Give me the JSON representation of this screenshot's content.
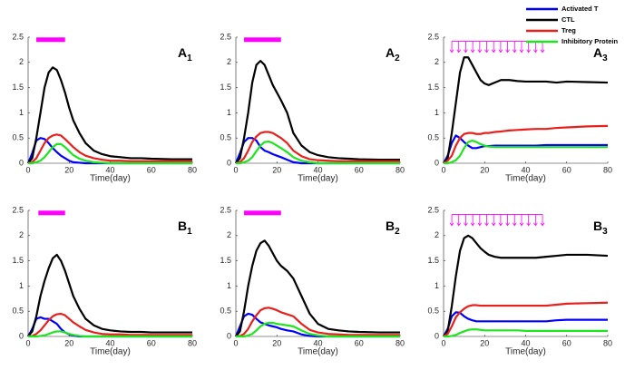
{
  "chart_data": [
    {
      "type": "line",
      "label": "A",
      "label_sub": "1",
      "xlabel": "Time(day)",
      "x": [
        0,
        2,
        4,
        6,
        8,
        10,
        12,
        14,
        16,
        18,
        20,
        22,
        25,
        28,
        32,
        36,
        40,
        45,
        50,
        55,
        60,
        70,
        80
      ],
      "xlim": [
        0,
        80
      ],
      "xticks": [
        0,
        20,
        40,
        60,
        80
      ],
      "ylim": [
        0,
        2.5
      ],
      "yticks": [
        0,
        0.5,
        1,
        1.5,
        2,
        2.5
      ],
      "treatment": {
        "start": 4,
        "end": 18,
        "y": 2.45,
        "color": "#ff00ff"
      },
      "series": [
        {
          "color": "#0000ff",
          "values": [
            0,
            0.2,
            0.45,
            0.5,
            0.48,
            0.4,
            0.3,
            0.22,
            0.15,
            0.1,
            0.05,
            0.02,
            0.01,
            0,
            0,
            0,
            0,
            0,
            0,
            0,
            0,
            0,
            0
          ]
        },
        {
          "color": "#000000",
          "values": [
            0,
            0.1,
            0.5,
            1.0,
            1.5,
            1.8,
            1.9,
            1.85,
            1.65,
            1.4,
            1.1,
            0.85,
            0.6,
            0.4,
            0.25,
            0.18,
            0.14,
            0.12,
            0.1,
            0.1,
            0.09,
            0.08,
            0.08
          ]
        },
        {
          "color": "#e8201c",
          "values": [
            0,
            0.02,
            0.1,
            0.25,
            0.4,
            0.5,
            0.55,
            0.57,
            0.55,
            0.48,
            0.4,
            0.32,
            0.22,
            0.15,
            0.1,
            0.07,
            0.05,
            0.05,
            0.04,
            0.04,
            0.04,
            0.04,
            0.04
          ]
        },
        {
          "color": "#1ee61e",
          "values": [
            0,
            0,
            0.02,
            0.05,
            0.12,
            0.22,
            0.32,
            0.38,
            0.38,
            0.32,
            0.24,
            0.16,
            0.09,
            0.05,
            0.02,
            0.01,
            0,
            0,
            0,
            0,
            0,
            0,
            0
          ]
        }
      ]
    },
    {
      "type": "line",
      "label": "A",
      "label_sub": "2",
      "xlabel": "Time(day)",
      "x": [
        0,
        2,
        4,
        6,
        8,
        10,
        12,
        14,
        16,
        18,
        20,
        22,
        25,
        28,
        32,
        36,
        40,
        45,
        50,
        55,
        60,
        70,
        80
      ],
      "xlim": [
        0,
        80
      ],
      "xticks": [
        0,
        20,
        40,
        60,
        80
      ],
      "ylim": [
        0,
        2.5
      ],
      "yticks": [
        0,
        0.5,
        1,
        1.5,
        2,
        2.5
      ],
      "treatment": {
        "start": 4,
        "end": 22,
        "y": 2.45,
        "color": "#ff00ff"
      },
      "series": [
        {
          "color": "#0000ff",
          "values": [
            0,
            0.2,
            0.42,
            0.5,
            0.5,
            0.45,
            0.32,
            0.25,
            0.22,
            0.18,
            0.15,
            0.12,
            0.07,
            0.02,
            0,
            0,
            0,
            0,
            0,
            0,
            0,
            0,
            0
          ]
        },
        {
          "color": "#000000",
          "values": [
            0,
            0.1,
            0.5,
            1.0,
            1.6,
            1.95,
            2.03,
            1.95,
            1.75,
            1.55,
            1.4,
            1.25,
            1.0,
            0.6,
            0.35,
            0.22,
            0.16,
            0.12,
            0.1,
            0.09,
            0.08,
            0.07,
            0.07
          ]
        },
        {
          "color": "#e8201c",
          "values": [
            0,
            0.02,
            0.1,
            0.25,
            0.42,
            0.53,
            0.6,
            0.62,
            0.62,
            0.6,
            0.55,
            0.5,
            0.4,
            0.25,
            0.14,
            0.08,
            0.06,
            0.05,
            0.04,
            0.04,
            0.04,
            0.04,
            0.04
          ]
        },
        {
          "color": "#1ee61e",
          "values": [
            0,
            0,
            0.02,
            0.05,
            0.12,
            0.24,
            0.35,
            0.42,
            0.43,
            0.4,
            0.35,
            0.3,
            0.22,
            0.12,
            0.05,
            0.02,
            0,
            0,
            0,
            0,
            0,
            0,
            0
          ]
        }
      ]
    },
    {
      "type": "line",
      "label": "A",
      "label_sub": "3",
      "xlabel": "Time(day)",
      "x": [
        0,
        2,
        4,
        6,
        8,
        10,
        12,
        14,
        16,
        18,
        20,
        22,
        25,
        28,
        32,
        36,
        40,
        45,
        50,
        55,
        60,
        70,
        80
      ],
      "xlim": [
        0,
        80
      ],
      "xticks": [
        0,
        20,
        40,
        60,
        80
      ],
      "ylim": [
        0,
        2.5
      ],
      "yticks": [
        0,
        0.5,
        1,
        1.5,
        2,
        2.5
      ],
      "doses": [
        4,
        7.4,
        10.8,
        14.2,
        17.6,
        21,
        24.4,
        27.8,
        31.2,
        34.6,
        38,
        41.4,
        44.8,
        48.2
      ],
      "dose_y": [
        2.42,
        2.2
      ],
      "dose_color": "#ff00ff",
      "series": [
        {
          "name": "Activated T",
          "color": "#0000ff",
          "values": [
            0,
            0.15,
            0.4,
            0.55,
            0.5,
            0.42,
            0.35,
            0.3,
            0.3,
            0.32,
            0.34,
            0.34,
            0.35,
            0.35,
            0.35,
            0.35,
            0.35,
            0.35,
            0.36,
            0.36,
            0.36,
            0.36,
            0.36
          ]
        },
        {
          "name": "CTL",
          "color": "#000000",
          "values": [
            0,
            0.1,
            0.6,
            1.2,
            1.8,
            2.1,
            2.1,
            1.95,
            1.8,
            1.65,
            1.58,
            1.55,
            1.6,
            1.65,
            1.65,
            1.63,
            1.62,
            1.62,
            1.62,
            1.6,
            1.62,
            1.61,
            1.6
          ]
        },
        {
          "name": "Treg",
          "color": "#e8201c",
          "values": [
            0,
            0.05,
            0.15,
            0.35,
            0.5,
            0.58,
            0.6,
            0.6,
            0.58,
            0.58,
            0.6,
            0.6,
            0.62,
            0.63,
            0.65,
            0.66,
            0.67,
            0.68,
            0.68,
            0.7,
            0.71,
            0.73,
            0.74
          ]
        },
        {
          "name": "Inhibitory Protein",
          "color": "#1ee61e",
          "values": [
            0,
            0,
            0.02,
            0.06,
            0.15,
            0.3,
            0.42,
            0.45,
            0.42,
            0.38,
            0.35,
            0.33,
            0.32,
            0.32,
            0.32,
            0.32,
            0.32,
            0.32,
            0.32,
            0.32,
            0.32,
            0.32,
            0.32
          ]
        }
      ]
    },
    {
      "type": "line",
      "label": "B",
      "label_sub": "1",
      "xlabel": "Time(day)",
      "x": [
        0,
        2,
        4,
        6,
        8,
        10,
        12,
        14,
        16,
        18,
        20,
        22,
        25,
        28,
        32,
        36,
        40,
        45,
        50,
        55,
        60,
        70,
        80
      ],
      "xlim": [
        0,
        80
      ],
      "xticks": [
        0,
        20,
        40,
        60,
        80
      ],
      "ylim": [
        0,
        2.5
      ],
      "yticks": [
        0,
        0.5,
        1,
        1.5,
        2,
        2.5
      ],
      "treatment": {
        "start": 5,
        "end": 18,
        "y": 2.45,
        "color": "#ff00ff"
      },
      "series": [
        {
          "color": "#0000ff",
          "values": [
            0,
            0.15,
            0.35,
            0.38,
            0.35,
            0.35,
            0.3,
            0.25,
            0.15,
            0.08,
            0.04,
            0.02,
            0,
            0,
            0,
            0,
            0,
            0,
            0,
            0,
            0,
            0,
            0
          ]
        },
        {
          "color": "#000000",
          "values": [
            0,
            0.1,
            0.4,
            0.8,
            1.1,
            1.35,
            1.55,
            1.62,
            1.5,
            1.3,
            1.05,
            0.8,
            0.55,
            0.35,
            0.22,
            0.15,
            0.12,
            0.1,
            0.09,
            0.09,
            0.08,
            0.08,
            0.08
          ]
        },
        {
          "color": "#e8201c",
          "values": [
            0,
            0.01,
            0.05,
            0.12,
            0.22,
            0.32,
            0.4,
            0.44,
            0.45,
            0.42,
            0.35,
            0.28,
            0.2,
            0.13,
            0.08,
            0.05,
            0.04,
            0.04,
            0.03,
            0.03,
            0.03,
            0.03,
            0.03
          ]
        },
        {
          "color": "#1ee61e",
          "values": [
            0,
            0,
            0,
            0.01,
            0.02,
            0.05,
            0.08,
            0.1,
            0.1,
            0.08,
            0.05,
            0.03,
            0.01,
            0,
            0,
            0,
            0,
            0,
            0,
            0,
            0,
            0,
            0
          ]
        }
      ]
    },
    {
      "type": "line",
      "label": "B",
      "label_sub": "2",
      "xlabel": "Time(day)",
      "x": [
        0,
        2,
        4,
        6,
        8,
        10,
        12,
        14,
        16,
        18,
        20,
        22,
        25,
        28,
        32,
        36,
        40,
        45,
        50,
        55,
        60,
        70,
        80
      ],
      "xlim": [
        0,
        80
      ],
      "xticks": [
        0,
        20,
        40,
        60,
        80
      ],
      "ylim": [
        0,
        2.5
      ],
      "yticks": [
        0,
        0.5,
        1,
        1.5,
        2,
        2.5
      ],
      "treatment": {
        "start": 4,
        "end": 22,
        "y": 2.45,
        "color": "#ff00ff"
      },
      "series": [
        {
          "color": "#0000ff",
          "values": [
            0,
            0.2,
            0.4,
            0.45,
            0.43,
            0.35,
            0.28,
            0.25,
            0.22,
            0.2,
            0.18,
            0.15,
            0.12,
            0.1,
            0.04,
            0.01,
            0,
            0,
            0,
            0,
            0,
            0,
            0
          ]
        },
        {
          "color": "#000000",
          "values": [
            0,
            0.1,
            0.5,
            1.0,
            1.4,
            1.7,
            1.85,
            1.9,
            1.8,
            1.65,
            1.5,
            1.4,
            1.3,
            1.15,
            0.8,
            0.45,
            0.25,
            0.15,
            0.12,
            0.1,
            0.09,
            0.08,
            0.08
          ]
        },
        {
          "color": "#e8201c",
          "values": [
            0,
            0.01,
            0.05,
            0.15,
            0.3,
            0.42,
            0.52,
            0.56,
            0.57,
            0.55,
            0.52,
            0.48,
            0.44,
            0.4,
            0.25,
            0.13,
            0.08,
            0.05,
            0.04,
            0.03,
            0.03,
            0.03,
            0.03
          ]
        },
        {
          "color": "#1ee61e",
          "values": [
            0,
            0,
            0,
            0.02,
            0.05,
            0.12,
            0.2,
            0.25,
            0.27,
            0.27,
            0.25,
            0.24,
            0.22,
            0.2,
            0.12,
            0.05,
            0.02,
            0,
            0,
            0,
            0,
            0,
            0
          ]
        }
      ]
    },
    {
      "type": "line",
      "label": "B",
      "label_sub": "3",
      "xlabel": "Time(day)",
      "x": [
        0,
        2,
        4,
        6,
        8,
        10,
        12,
        14,
        16,
        18,
        20,
        22,
        25,
        28,
        32,
        36,
        40,
        45,
        50,
        55,
        60,
        70,
        80
      ],
      "xlim": [
        0,
        80
      ],
      "xticks": [
        0,
        20,
        40,
        60,
        80
      ],
      "ylim": [
        0,
        2.5
      ],
      "yticks": [
        0,
        0.5,
        1,
        1.5,
        2,
        2.5
      ],
      "doses": [
        4,
        7.4,
        10.8,
        14.2,
        17.6,
        21,
        24.4,
        27.8,
        31.2,
        34.6,
        38,
        41.4,
        44.8,
        48.2
      ],
      "dose_y": [
        2.42,
        2.2
      ],
      "dose_color": "#ff00ff",
      "series": [
        {
          "color": "#0000ff",
          "values": [
            0,
            0.15,
            0.4,
            0.48,
            0.47,
            0.4,
            0.35,
            0.32,
            0.3,
            0.3,
            0.3,
            0.3,
            0.3,
            0.3,
            0.3,
            0.3,
            0.3,
            0.3,
            0.3,
            0.32,
            0.33,
            0.33,
            0.33
          ]
        },
        {
          "color": "#000000",
          "values": [
            0,
            0.1,
            0.6,
            1.2,
            1.7,
            1.95,
            2.0,
            1.95,
            1.85,
            1.75,
            1.68,
            1.62,
            1.58,
            1.56,
            1.56,
            1.56,
            1.56,
            1.56,
            1.58,
            1.6,
            1.62,
            1.62,
            1.6
          ]
        },
        {
          "color": "#e8201c",
          "values": [
            0,
            0.05,
            0.2,
            0.38,
            0.48,
            0.55,
            0.6,
            0.62,
            0.62,
            0.61,
            0.61,
            0.61,
            0.61,
            0.61,
            0.61,
            0.61,
            0.61,
            0.61,
            0.61,
            0.63,
            0.65,
            0.66,
            0.67
          ]
        },
        {
          "color": "#1ee61e",
          "values": [
            0,
            0,
            0.01,
            0.03,
            0.07,
            0.1,
            0.13,
            0.14,
            0.14,
            0.13,
            0.12,
            0.12,
            0.12,
            0.12,
            0.12,
            0.12,
            0.11,
            0.11,
            0.11,
            0.11,
            0.11,
            0.11,
            0.11
          ]
        }
      ]
    }
  ]
}
